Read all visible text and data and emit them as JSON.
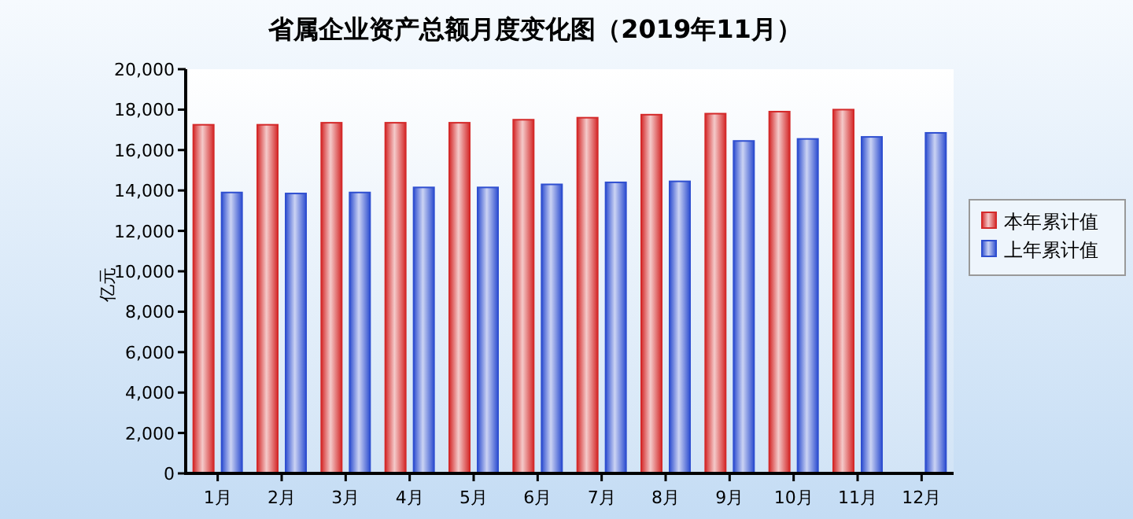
{
  "chart_data": {
    "type": "bar",
    "title": "省属企业资产总额月度变化图（2019年11月）",
    "ylabel": "亿元",
    "categories": [
      "1月",
      "2月",
      "3月",
      "4月",
      "5月",
      "6月",
      "7月",
      "8月",
      "9月",
      "10月",
      "11月",
      "12月"
    ],
    "series": [
      {
        "name": "本年累计值",
        "color": "#d42a2a",
        "values": [
          17250,
          17250,
          17350,
          17350,
          17350,
          17500,
          17600,
          17750,
          17800,
          17900,
          18000,
          null
        ]
      },
      {
        "name": "上年累计值",
        "color": "#2f4fd0",
        "values": [
          13900,
          13850,
          13900,
          14150,
          14150,
          14300,
          14400,
          14450,
          16450,
          16550,
          16650,
          16850
        ]
      }
    ],
    "ylim": [
      0,
      20000
    ],
    "yticks": [
      {
        "value": 0,
        "label": "0"
      },
      {
        "value": 2000,
        "label": "2,000"
      },
      {
        "value": 4000,
        "label": "4,000"
      },
      {
        "value": 6000,
        "label": "6,000"
      },
      {
        "value": 8000,
        "label": "8,000"
      },
      {
        "value": 10000,
        "label": "10,000"
      },
      {
        "value": 12000,
        "label": "12,000"
      },
      {
        "value": 14000,
        "label": "14,000"
      },
      {
        "value": 16000,
        "label": "16,000"
      },
      {
        "value": 18000,
        "label": "18,000"
      },
      {
        "value": 20000,
        "label": "20,000"
      }
    ],
    "grid": false,
    "legend": "right"
  }
}
